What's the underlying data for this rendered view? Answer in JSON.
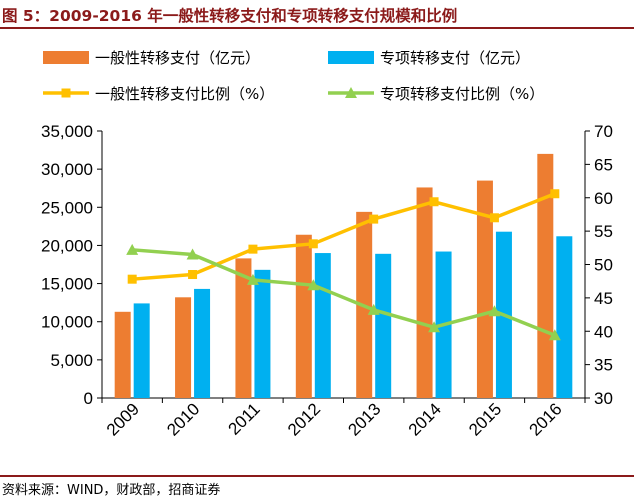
{
  "title": "图 5：2009-2016 年一般性转移支付和专项转移支付规模和比例",
  "source": "资料来源：WIND，财政部，招商证券",
  "colors": {
    "general_bar": "#ED7D31",
    "special_bar": "#00B0F0",
    "general_line": "#FFC000",
    "special_line": "#92D050",
    "title": "#8B1A1A"
  },
  "chart_data": {
    "type": "bar",
    "categories": [
      "2009",
      "2010",
      "2011",
      "2012",
      "2013",
      "2014",
      "2015",
      "2016"
    ],
    "series": [
      {
        "name": "一般性转移支付（亿元）",
        "kind": "bar",
        "axis": "left",
        "values": [
          11300,
          13200,
          18300,
          21400,
          24400,
          27600,
          28500,
          32000
        ]
      },
      {
        "name": "专项转移支付（亿元）",
        "kind": "bar",
        "axis": "left",
        "values": [
          12400,
          14300,
          16800,
          19000,
          18900,
          19200,
          21800,
          21200
        ]
      },
      {
        "name": "一般性转移支付比例（%）",
        "kind": "line",
        "axis": "right",
        "values": [
          47.8,
          48.5,
          52.3,
          53.1,
          56.8,
          59.4,
          57.0,
          60.6
        ]
      },
      {
        "name": "专项转移支付比例（%）",
        "kind": "line",
        "axis": "right",
        "values": [
          52.2,
          51.5,
          47.7,
          46.9,
          43.2,
          40.6,
          43.0,
          39.4
        ]
      }
    ],
    "y_left": {
      "min": 0,
      "max": 35000,
      "step": 5000,
      "tick_labels": [
        "0",
        "5,000",
        "10,000",
        "15,000",
        "20,000",
        "25,000",
        "30,000",
        "35,000"
      ]
    },
    "y_right": {
      "min": 30,
      "max": 70,
      "step": 5,
      "tick_labels": [
        "30",
        "35",
        "40",
        "45",
        "50",
        "55",
        "60",
        "65",
        "70"
      ]
    },
    "legend_position": "top"
  }
}
